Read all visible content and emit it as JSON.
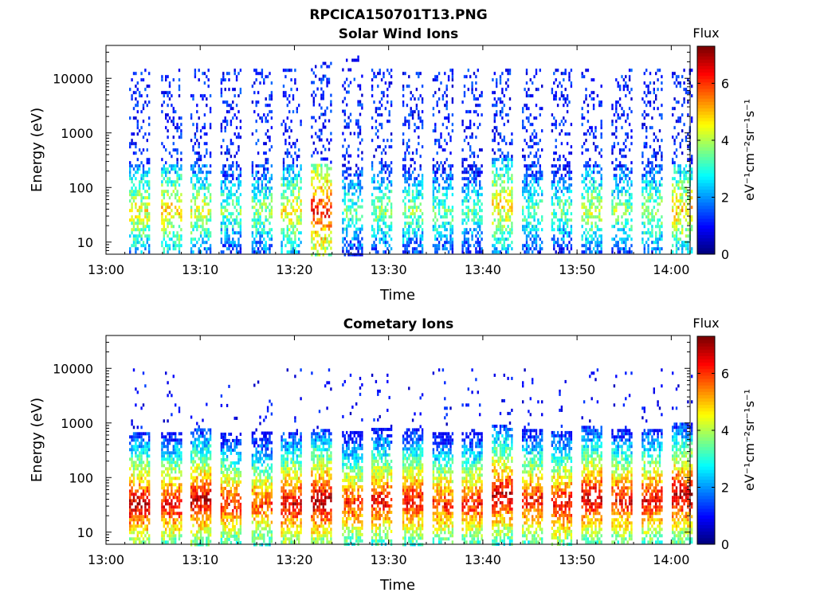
{
  "figure": {
    "title": "RPCICA150701T13.PNG"
  },
  "chart_data": [
    {
      "type": "heatmap",
      "title": "Solar Wind Ions",
      "xlabel": "Time",
      "ylabel": "Energy (eV)",
      "x_tick_labels": [
        "13:00",
        "13:10",
        "13:20",
        "13:30",
        "13:40",
        "13:50",
        "14:00"
      ],
      "x_ticks_minutes": [
        0,
        10,
        20,
        30,
        40,
        50,
        60
      ],
      "xlim_minutes": [
        0,
        62
      ],
      "y_scale": "log",
      "y_tick_labels": [
        "10",
        "100",
        "1000",
        "10000"
      ],
      "y_ticks": [
        10,
        100,
        1000,
        10000
      ],
      "ylim": [
        6,
        40000
      ],
      "colorbar": {
        "title": "Flux",
        "label": "eV⁻¹cm⁻²sr⁻¹s⁻¹",
        "tick_labels": [
          "0",
          "2",
          "4",
          "6"
        ],
        "ticks": [
          0,
          2,
          4,
          6
        ],
        "range": [
          0,
          7.3
        ],
        "colormap": "jet"
      },
      "sweep_starts_minutes": [
        3.3,
        6.7,
        9.8,
        13.0,
        16.3,
        19.4,
        22.6,
        25.9,
        29.0,
        32.3,
        35.5,
        38.6,
        41.8,
        45.0,
        48.1,
        51.3,
        54.5,
        57.7,
        60.9
      ],
      "sweeps": [
        {
          "t": 3.3,
          "peak_energy_eV": 40,
          "peak_flux": 4.5,
          "max_energy_eV": 15000
        },
        {
          "t": 6.7,
          "peak_energy_eV": 40,
          "peak_flux": 4.8,
          "max_energy_eV": 15000
        },
        {
          "t": 9.8,
          "peak_energy_eV": 40,
          "peak_flux": 4.3,
          "max_energy_eV": 15000
        },
        {
          "t": 13.0,
          "peak_energy_eV": 40,
          "peak_flux": 3.6,
          "max_energy_eV": 15000
        },
        {
          "t": 16.3,
          "peak_energy_eV": 40,
          "peak_flux": 3.8,
          "max_energy_eV": 15000
        },
        {
          "t": 19.4,
          "peak_energy_eV": 40,
          "peak_flux": 4.6,
          "max_energy_eV": 15000
        },
        {
          "t": 22.6,
          "peak_energy_eV": 40,
          "peak_flux": 6.2,
          "max_energy_eV": 20000
        },
        {
          "t": 25.9,
          "peak_energy_eV": 40,
          "peak_flux": 3.5,
          "max_energy_eV": 30000
        },
        {
          "t": 29.0,
          "peak_energy_eV": 40,
          "peak_flux": 3.8,
          "max_energy_eV": 15000
        },
        {
          "t": 32.3,
          "peak_energy_eV": 40,
          "peak_flux": 3.7,
          "max_energy_eV": 15000
        },
        {
          "t": 35.5,
          "peak_energy_eV": 40,
          "peak_flux": 3.6,
          "max_energy_eV": 15000
        },
        {
          "t": 38.6,
          "peak_energy_eV": 40,
          "peak_flux": 3.4,
          "max_energy_eV": 15000
        },
        {
          "t": 41.8,
          "peak_energy_eV": 50,
          "peak_flux": 4.8,
          "max_energy_eV": 15000
        },
        {
          "t": 45.0,
          "peak_energy_eV": 40,
          "peak_flux": 3.6,
          "max_energy_eV": 15000
        },
        {
          "t": 48.1,
          "peak_energy_eV": 40,
          "peak_flux": 3.5,
          "max_energy_eV": 15000
        },
        {
          "t": 51.3,
          "peak_energy_eV": 40,
          "peak_flux": 4.2,
          "max_energy_eV": 15000
        },
        {
          "t": 54.5,
          "peak_energy_eV": 40,
          "peak_flux": 3.8,
          "max_energy_eV": 15000
        },
        {
          "t": 57.7,
          "peak_energy_eV": 40,
          "peak_flux": 4.0,
          "max_energy_eV": 15000
        },
        {
          "t": 60.9,
          "peak_energy_eV": 40,
          "peak_flux": 4.9,
          "max_energy_eV": 15000
        }
      ]
    },
    {
      "type": "heatmap",
      "title": "Cometary Ions",
      "xlabel": "Time",
      "ylabel": "Energy (eV)",
      "x_tick_labels": [
        "13:00",
        "13:10",
        "13:20",
        "13:30",
        "13:40",
        "13:50",
        "14:00"
      ],
      "x_ticks_minutes": [
        0,
        10,
        20,
        30,
        40,
        50,
        60
      ],
      "xlim_minutes": [
        0,
        62
      ],
      "y_scale": "log",
      "y_tick_labels": [
        "10",
        "100",
        "1000",
        "10000"
      ],
      "y_ticks": [
        10,
        100,
        1000,
        10000
      ],
      "ylim": [
        6,
        40000
      ],
      "colorbar": {
        "title": "Flux",
        "label": "eV⁻¹cm⁻²sr⁻¹s⁻¹",
        "tick_labels": [
          "0",
          "2",
          "4",
          "6"
        ],
        "ticks": [
          0,
          2,
          4,
          6
        ],
        "range": [
          0,
          7.3
        ],
        "colormap": "jet"
      },
      "sweep_starts_minutes": [
        3.3,
        6.7,
        9.8,
        13.0,
        16.3,
        19.4,
        22.6,
        25.9,
        29.0,
        32.3,
        35.5,
        38.6,
        41.8,
        45.0,
        48.1,
        51.3,
        54.5,
        57.7,
        60.9
      ],
      "sweeps": [
        {
          "t": 3.3,
          "peak_energy_eV": 35,
          "peak_flux": 6.8,
          "max_energy_eV": 10000
        },
        {
          "t": 6.7,
          "peak_energy_eV": 35,
          "peak_flux": 6.5,
          "max_energy_eV": 10000
        },
        {
          "t": 9.8,
          "peak_energy_eV": 40,
          "peak_flux": 6.8,
          "max_energy_eV": 4000
        },
        {
          "t": 13.0,
          "peak_energy_eV": 35,
          "peak_flux": 6.2,
          "max_energy_eV": 5000
        },
        {
          "t": 16.3,
          "peak_energy_eV": 35,
          "peak_flux": 6.0,
          "max_energy_eV": 6000
        },
        {
          "t": 19.4,
          "peak_energy_eV": 35,
          "peak_flux": 6.7,
          "max_energy_eV": 10000
        },
        {
          "t": 22.6,
          "peak_energy_eV": 40,
          "peak_flux": 7.0,
          "max_energy_eV": 10000
        },
        {
          "t": 25.9,
          "peak_energy_eV": 35,
          "peak_flux": 6.2,
          "max_energy_eV": 8000
        },
        {
          "t": 29.0,
          "peak_energy_eV": 40,
          "peak_flux": 6.5,
          "max_energy_eV": 8000
        },
        {
          "t": 32.3,
          "peak_energy_eV": 40,
          "peak_flux": 6.5,
          "max_energy_eV": 9000
        },
        {
          "t": 35.5,
          "peak_energy_eV": 35,
          "peak_flux": 6.2,
          "max_energy_eV": 10000
        },
        {
          "t": 38.6,
          "peak_energy_eV": 35,
          "peak_flux": 6.3,
          "max_energy_eV": 10000
        },
        {
          "t": 41.8,
          "peak_energy_eV": 50,
          "peak_flux": 6.8,
          "max_energy_eV": 8000
        },
        {
          "t": 45.0,
          "peak_energy_eV": 40,
          "peak_flux": 6.4,
          "max_energy_eV": 10000
        },
        {
          "t": 48.1,
          "peak_energy_eV": 35,
          "peak_flux": 6.6,
          "max_energy_eV": 8000
        },
        {
          "t": 51.3,
          "peak_energy_eV": 45,
          "peak_flux": 6.8,
          "max_energy_eV": 10000
        },
        {
          "t": 54.5,
          "peak_energy_eV": 40,
          "peak_flux": 6.5,
          "max_energy_eV": 10000
        },
        {
          "t": 57.7,
          "peak_energy_eV": 40,
          "peak_flux": 6.6,
          "max_energy_eV": 10000
        },
        {
          "t": 60.9,
          "peak_energy_eV": 50,
          "peak_flux": 6.9,
          "max_energy_eV": 10000
        }
      ]
    }
  ]
}
